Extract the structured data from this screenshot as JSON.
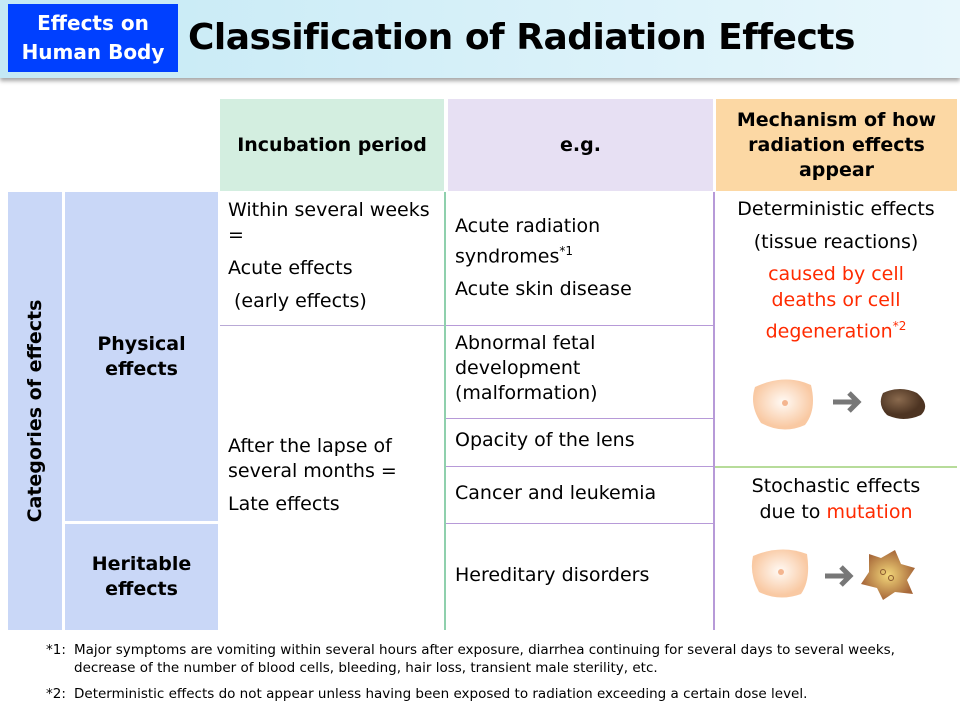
{
  "header": {
    "tag": "Effects on Human Body",
    "tag_line1": "Effects on",
    "tag_line2": "Human Body",
    "title": "Classification of Radiation Effects"
  },
  "columns": {
    "incubation": "Incubation period",
    "eg": "e.g.",
    "mechanism": "Mechanism of how radiation effects appear"
  },
  "categories": {
    "label": "Categories of effects",
    "physical": "Physical effects",
    "heritable": "Heritable effects"
  },
  "incubation": {
    "early": [
      "Within several weeks =",
      "Acute effects",
      "(early effects)"
    ],
    "late": [
      "After the lapse of several months =",
      "Late effects"
    ]
  },
  "examples": [
    {
      "text": "Acute radiation syndromes",
      "note": "*1",
      "extra": "Acute skin disease"
    },
    {
      "text": "Abnormal fetal development (malformation)"
    },
    {
      "text": "Opacity of the lens"
    },
    {
      "text": "Cancer and leukemia"
    },
    {
      "text": "Hereditary disorders"
    }
  ],
  "mechanism": {
    "deterministic": "Deterministic effects",
    "tissue": "(tissue reactions)",
    "cause": "caused by cell deaths or cell degeneration",
    "cause_note": "*2",
    "stochastic": "Stochastic effects",
    "due_to": "due to",
    "mutation": "mutation"
  },
  "footnotes": [
    {
      "mark": "*1:",
      "text": "Major symptoms are vomiting within several hours after exposure, diarrhea continuing for several days to several weeks, decrease of the number of blood cells, bleeding, hair loss, transient male sterility, etc."
    },
    {
      "mark": "*2:",
      "text": "Deterministic effects do not appear unless having been exposed to radiation exceeding a certain dose level."
    }
  ],
  "colors": {
    "tag": "#0040ff",
    "incubation_header": "#d3eee0",
    "eg_header": "#e7e0f3",
    "mechanism_header": "#fcd8a4",
    "category": "#c9d7f7",
    "red": "#ff2a00"
  }
}
